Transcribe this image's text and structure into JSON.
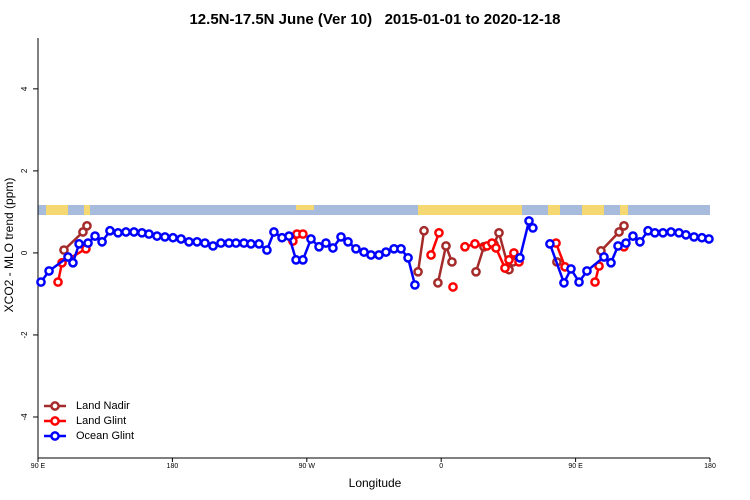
{
  "chart_data": {
    "type": "line",
    "title": "12.5N-17.5N June (Ver 10)   2015-01-01 to 2020-12-18",
    "xlabel": "Longitude",
    "ylabel": "XCO2 - MLO trend (ppm)",
    "xlim": [
      90,
      540
    ],
    "xticks": [
      {
        "value": 90,
        "label": "90 E"
      },
      {
        "value": 180,
        "label": "180"
      },
      {
        "value": 270,
        "label": "90 W"
      },
      {
        "value": 360,
        "label": "0"
      },
      {
        "value": 450,
        "label": "90 E"
      },
      {
        "value": 540,
        "label": "180"
      }
    ],
    "ylim": [
      -5,
      5.24
    ],
    "yticks": [
      -4,
      -2,
      0,
      2,
      4
    ],
    "legend": "bottom-left",
    "series": [
      {
        "name": "Land Nadir",
        "color": "#a52a2a",
        "x": [
          107.4,
          120.1,
          122.8,
          null,
          344.5,
          348.5,
          null,
          357.8,
          363.2,
          367.2,
          null,
          383.3,
          388.6,
          395.3,
          398.7,
          405.4,
          408.1,
          null,
          437.5,
          null,
          467.0,
          479.1,
          482.4
        ],
        "values": [
          0.07,
          0.51,
          0.66,
          null,
          -0.46,
          0.54,
          null,
          -0.73,
          0.17,
          -0.22,
          null,
          -0.46,
          0.15,
          0.22,
          0.49,
          -0.41,
          -0.22,
          null,
          -0.22,
          null,
          0.05,
          0.51,
          0.66
        ]
      },
      {
        "name": "Land Glint",
        "color": "#ff0000",
        "x": [
          103.4,
          106.1,
          122.1,
          null,
          260.7,
          263.4,
          267.4,
          null,
          353.2,
          358.5,
          null,
          367.9,
          null,
          375.9,
          382.6,
          390.7,
          394.0,
          396.7,
          402.7,
          405.4,
          408.7,
          412.1,
          null,
          436.9,
          442.9,
          null,
          463.0,
          465.7,
          null,
          482.4
        ],
        "values": [
          -0.71,
          -0.24,
          0.1,
          null,
          0.29,
          0.46,
          0.46,
          null,
          -0.05,
          0.49,
          null,
          -0.83,
          null,
          0.15,
          0.22,
          0.17,
          0.24,
          0.12,
          -0.37,
          -0.17,
          0.0,
          -0.22,
          null,
          0.24,
          -0.34,
          null,
          -0.71,
          -0.32,
          null,
          0.15
        ]
      },
      {
        "name": "Ocean Glint",
        "color": "#0000ff",
        "x": [
          92.0,
          97.4,
          110.1,
          113.4,
          117.5,
          123.5,
          128.2,
          132.9,
          138.2,
          143.6,
          148.9,
          154.3,
          159.6,
          164.3,
          169.7,
          175.0,
          180.4,
          185.8,
          191.1,
          196.5,
          201.8,
          207.2,
          212.5,
          217.9,
          222.6,
          227.9,
          232.6,
          238.0,
          243.3,
          248.0,
          253.4,
          258.1,
          262.8,
          267.4,
          272.8,
          278.2,
          282.8,
          287.5,
          292.9,
          297.6,
          302.9,
          308.3,
          313.0,
          318.3,
          323.0,
          328.4,
          333.1,
          337.8,
          342.4,
          null,
          412.7,
          418.8,
          421.4,
          null,
          432.8,
          442.2,
          446.9,
          452.3,
          457.6,
          469.0,
          473.7,
          478.4,
          483.7,
          488.4,
          493.1,
          498.5,
          503.1,
          508.5,
          513.9,
          519.2,
          523.9,
          529.3,
          534.6,
          539.3
        ],
        "values": [
          -0.71,
          -0.44,
          -0.1,
          -0.24,
          0.22,
          0.24,
          0.41,
          0.27,
          0.54,
          0.49,
          0.51,
          0.51,
          0.49,
          0.46,
          0.41,
          0.39,
          0.37,
          0.34,
          0.27,
          0.27,
          0.24,
          0.17,
          0.24,
          0.24,
          0.24,
          0.24,
          0.22,
          0.22,
          0.07,
          0.51,
          0.37,
          0.41,
          -0.17,
          -0.17,
          0.34,
          0.15,
          0.24,
          0.12,
          0.39,
          0.27,
          0.1,
          0.02,
          -0.05,
          -0.05,
          0.02,
          0.1,
          0.1,
          -0.12,
          -0.78,
          null,
          -0.12,
          0.78,
          0.61,
          null,
          0.22,
          -0.73,
          -0.39,
          -0.71,
          -0.44,
          -0.1,
          -0.24,
          0.17,
          0.24,
          0.41,
          0.27,
          0.54,
          0.49,
          0.49,
          0.51,
          0.49,
          0.44,
          0.39,
          0.37,
          0.34
        ]
      }
    ]
  }
}
